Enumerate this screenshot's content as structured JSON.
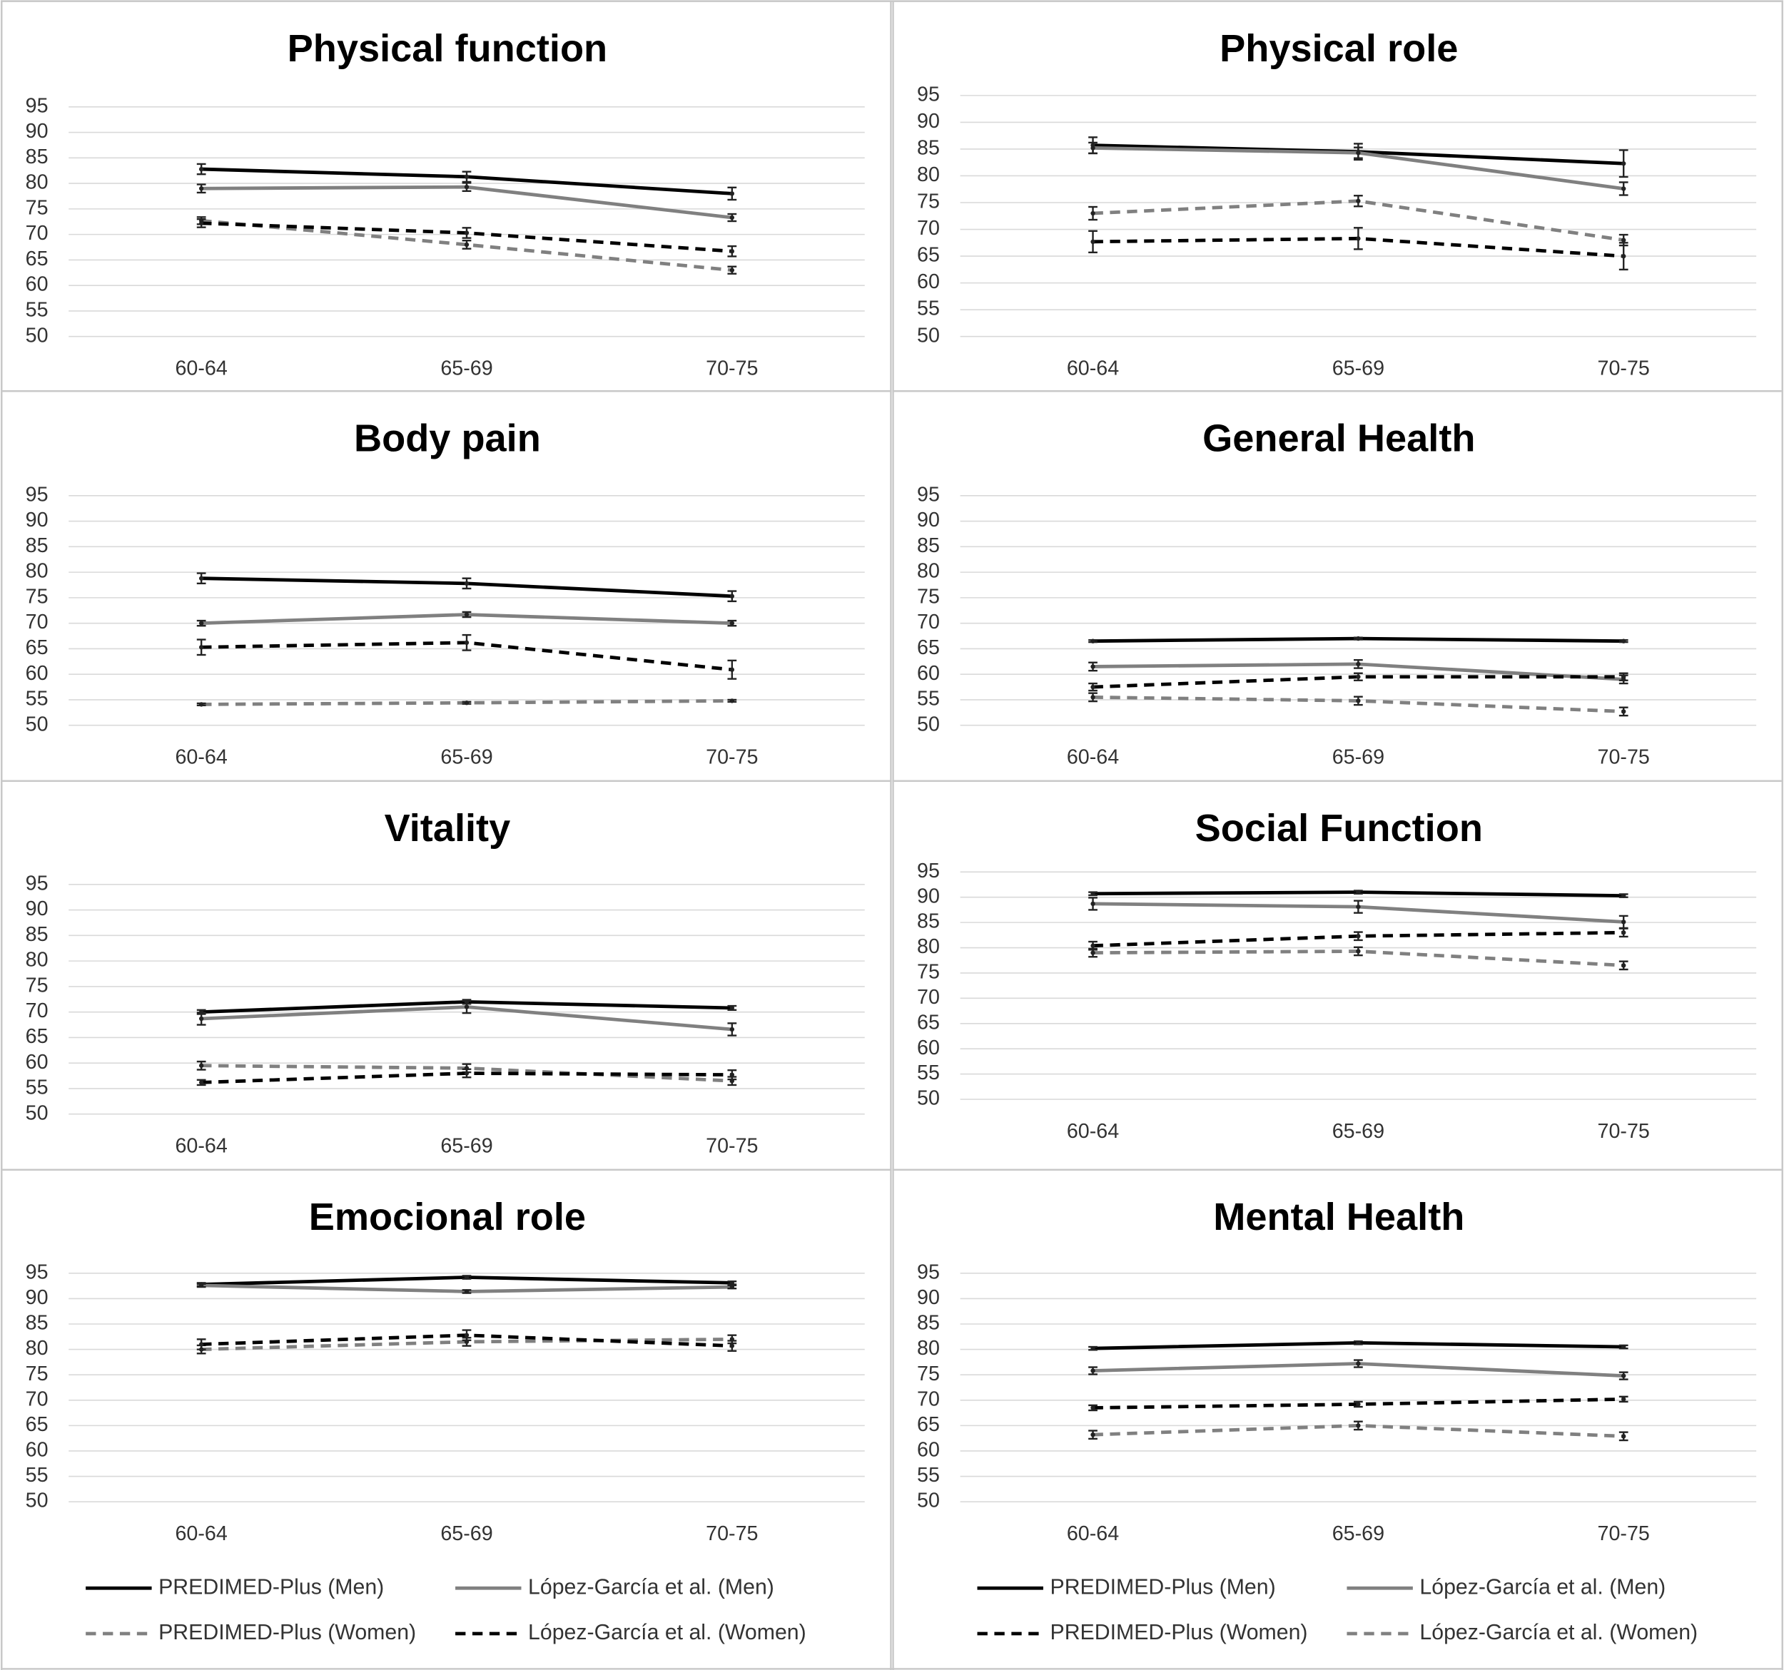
{
  "chart_data": [
    {
      "type": "line",
      "title": "Physical function",
      "categories": [
        "60-64",
        "65-69",
        "70-75"
      ],
      "ylim": [
        50,
        95
      ],
      "yticks": [
        50,
        55,
        60,
        65,
        70,
        75,
        80,
        85,
        90,
        95
      ],
      "grid": true,
      "series": [
        {
          "color": "#000000",
          "dash": false,
          "values": [
            82.8,
            81.3,
            78
          ],
          "errors": [
            1,
            1,
            1.2
          ]
        },
        {
          "color": "#808080",
          "dash": false,
          "values": [
            79,
            79.3,
            73.3
          ],
          "errors": [
            0.8,
            0.8,
            0.7
          ]
        },
        {
          "color": "#808080",
          "dash": true,
          "values": [
            72.7,
            68,
            63
          ],
          "errors": [
            0.7,
            0.8,
            0.7
          ]
        },
        {
          "color": "#000000",
          "dash": true,
          "values": [
            72.2,
            70.3,
            66.7
          ],
          "errors": [
            0.8,
            1,
            1
          ]
        }
      ]
    },
    {
      "type": "line",
      "title": "Physical role",
      "categories": [
        "60-64",
        "65-69",
        "70-75"
      ],
      "ylim": [
        50,
        95
      ],
      "yticks": [
        50,
        55,
        60,
        65,
        70,
        75,
        80,
        85,
        90,
        95
      ],
      "grid": true,
      "series": [
        {
          "color": "#000000",
          "dash": false,
          "values": [
            85.7,
            84.5,
            82.3
          ],
          "errors": [
            1.5,
            1.5,
            2.5
          ]
        },
        {
          "color": "#808080",
          "dash": false,
          "values": [
            85.2,
            84.3,
            77.6
          ],
          "errors": [
            1,
            1,
            1.2
          ]
        },
        {
          "color": "#808080",
          "dash": true,
          "values": [
            73,
            75.3,
            68
          ],
          "errors": [
            1.2,
            1,
            1
          ]
        },
        {
          "color": "#000000",
          "dash": true,
          "values": [
            67.7,
            68.3,
            65
          ],
          "errors": [
            2,
            2,
            2.5
          ]
        }
      ]
    },
    {
      "type": "line",
      "title": "Body pain",
      "categories": [
        "60-64",
        "65-69",
        "70-75"
      ],
      "ylim": [
        50,
        95
      ],
      "yticks": [
        50,
        55,
        60,
        65,
        70,
        75,
        80,
        85,
        90,
        95
      ],
      "grid": true,
      "series": [
        {
          "color": "#000000",
          "dash": false,
          "values": [
            78.8,
            77.8,
            75.3
          ],
          "errors": [
            1,
            1,
            1
          ]
        },
        {
          "color": "#808080",
          "dash": false,
          "values": [
            70,
            71.7,
            70
          ],
          "errors": [
            0.5,
            0.5,
            0.5
          ]
        },
        {
          "color": "#000000",
          "dash": true,
          "values": [
            65.3,
            66.2,
            60.9
          ],
          "errors": [
            1.5,
            1.5,
            1.8
          ]
        },
        {
          "color": "#808080",
          "dash": true,
          "values": [
            54.1,
            54.4,
            54.8
          ],
          "errors": [
            0.2,
            0.2,
            0.2
          ]
        }
      ]
    },
    {
      "type": "line",
      "title": "General Health",
      "categories": [
        "60-64",
        "65-69",
        "70-75"
      ],
      "ylim": [
        50,
        95
      ],
      "yticks": [
        50,
        55,
        60,
        65,
        70,
        75,
        80,
        85,
        90,
        95
      ],
      "grid": true,
      "series": [
        {
          "color": "#000000",
          "dash": false,
          "values": [
            66.5,
            67,
            66.5
          ],
          "errors": [
            0.2,
            0.2,
            0.2
          ]
        },
        {
          "color": "#808080",
          "dash": false,
          "values": [
            61.5,
            62,
            59
          ],
          "errors": [
            0.8,
            0.8,
            0.8
          ]
        },
        {
          "color": "#000000",
          "dash": true,
          "values": [
            57.5,
            59.5,
            59.5
          ],
          "errors": [
            0.7,
            0.7,
            0.7
          ]
        },
        {
          "color": "#808080",
          "dash": true,
          "values": [
            55.5,
            54.8,
            52.7
          ],
          "errors": [
            0.8,
            0.8,
            0.8
          ]
        }
      ]
    },
    {
      "type": "line",
      "title": "Vitality",
      "categories": [
        "60-64",
        "65-69",
        "70-75"
      ],
      "ylim": [
        50,
        95
      ],
      "yticks": [
        50,
        55,
        60,
        65,
        70,
        75,
        80,
        85,
        90,
        95
      ],
      "grid": true,
      "series": [
        {
          "color": "#000000",
          "dash": false,
          "values": [
            70,
            72,
            70.8
          ],
          "errors": [
            0.4,
            0.4,
            0.4
          ]
        },
        {
          "color": "#808080",
          "dash": false,
          "values": [
            68.7,
            71,
            66.6
          ],
          "errors": [
            1.2,
            1.2,
            1.2
          ]
        },
        {
          "color": "#808080",
          "dash": true,
          "values": [
            59.5,
            59,
            56.5
          ],
          "errors": [
            0.8,
            0.8,
            0.8
          ]
        },
        {
          "color": "#000000",
          "dash": true,
          "values": [
            56.2,
            58,
            57.7
          ],
          "errors": [
            0.5,
            0.8,
            0.9
          ]
        }
      ]
    },
    {
      "type": "line",
      "title": "Social Function",
      "categories": [
        "60-64",
        "65-69",
        "70-75"
      ],
      "ylim": [
        50,
        95
      ],
      "yticks": [
        50,
        55,
        60,
        65,
        70,
        75,
        80,
        85,
        90,
        95
      ],
      "grid": true,
      "series": [
        {
          "color": "#000000",
          "dash": false,
          "values": [
            90.7,
            91,
            90.3
          ],
          "errors": [
            0.3,
            0.3,
            0.3
          ]
        },
        {
          "color": "#808080",
          "dash": false,
          "values": [
            88.7,
            88.1,
            85.1
          ],
          "errors": [
            1.2,
            1.2,
            1.2
          ]
        },
        {
          "color": "#000000",
          "dash": true,
          "values": [
            80.4,
            82.3,
            83
          ],
          "errors": [
            0.8,
            0.8,
            0.8
          ]
        },
        {
          "color": "#808080",
          "dash": true,
          "values": [
            79,
            79.3,
            76.5
          ],
          "errors": [
            0.8,
            0.8,
            0.8
          ]
        }
      ]
    },
    {
      "type": "line",
      "title": "Emocional role",
      "categories": [
        "60-64",
        "65-69",
        "70-75"
      ],
      "ylim": [
        50,
        95
      ],
      "yticks": [
        50,
        55,
        60,
        65,
        70,
        75,
        80,
        85,
        90,
        95
      ],
      "grid": true,
      "legend": "bottom",
      "series": [
        {
          "name": "PREDIMED-Plus (Men)",
          "color": "#000000",
          "dash": false,
          "values": [
            92.8,
            94.2,
            93.1
          ],
          "errors": [
            0.3,
            0.3,
            0.3
          ]
        },
        {
          "name": "López-García et al. (Men)",
          "color": "#808080",
          "dash": false,
          "values": [
            92.6,
            91.4,
            92.3
          ],
          "errors": [
            0.3,
            0.3,
            0.3
          ]
        },
        {
          "name": "PREDIMED-Plus (Women)",
          "color": "#808080",
          "dash": true,
          "values": [
            80,
            81.5,
            82
          ],
          "errors": [
            0.8,
            0.8,
            0.8
          ]
        },
        {
          "name": "López-García et al. (Women)",
          "color": "#000000",
          "dash": true,
          "values": [
            81,
            82.8,
            80.7
          ],
          "errors": [
            1,
            1,
            1
          ]
        }
      ]
    },
    {
      "type": "line",
      "title": "Mental Health",
      "categories": [
        "60-64",
        "65-69",
        "70-75"
      ],
      "ylim": [
        50,
        95
      ],
      "yticks": [
        50,
        55,
        60,
        65,
        70,
        75,
        80,
        85,
        90,
        95
      ],
      "grid": true,
      "legend": "bottom",
      "series": [
        {
          "name": "PREDIMED-Plus (Men)",
          "color": "#000000",
          "dash": false,
          "values": [
            80.2,
            81.3,
            80.5
          ],
          "errors": [
            0.3,
            0.3,
            0.3
          ]
        },
        {
          "name": "López-García et al. (Men)",
          "color": "#808080",
          "dash": false,
          "values": [
            75.8,
            77.2,
            74.8
          ],
          "errors": [
            0.7,
            0.7,
            0.7
          ]
        },
        {
          "name": "PREDIMED-Plus (Women)",
          "color": "#000000",
          "dash": true,
          "values": [
            68.5,
            69.2,
            70.2
          ],
          "errors": [
            0.5,
            0.5,
            0.5
          ]
        },
        {
          "name": "López-García et al. (Women)",
          "color": "#808080",
          "dash": true,
          "values": [
            63.2,
            65,
            62.9
          ],
          "errors": [
            0.8,
            0.8,
            0.8
          ]
        }
      ]
    }
  ]
}
